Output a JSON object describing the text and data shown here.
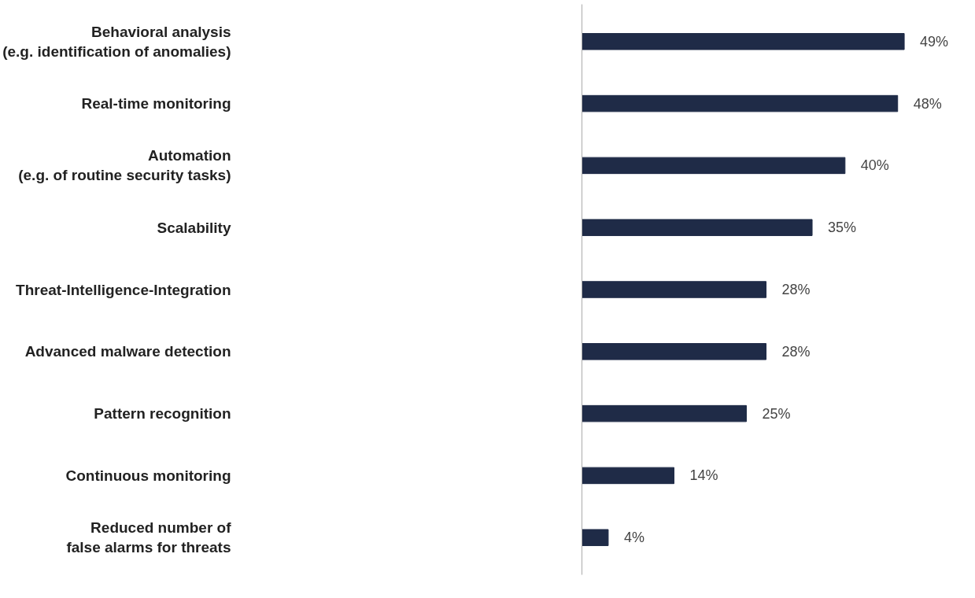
{
  "chart_data": {
    "type": "bar",
    "orientation": "horizontal",
    "categories": [
      "Behavioral analysis\n(e.g. identification of anomalies)",
      "Real-time monitoring",
      "Automation\n(e.g. of routine security tasks)",
      "Scalability",
      "Threat-Intelligence-Integration",
      "Advanced malware detection",
      "Pattern recognition",
      "Continuous monitoring",
      "Reduced number of\nfalse alarms for threats"
    ],
    "values": [
      49,
      48,
      40,
      35,
      28,
      28,
      25,
      14,
      4
    ],
    "value_labels": [
      "49%",
      "48%",
      "40%",
      "35%",
      "28%",
      "28%",
      "25%",
      "14%",
      "4%"
    ],
    "color": "#1f2b47",
    "tick_labels": "y",
    "grid": false
  }
}
